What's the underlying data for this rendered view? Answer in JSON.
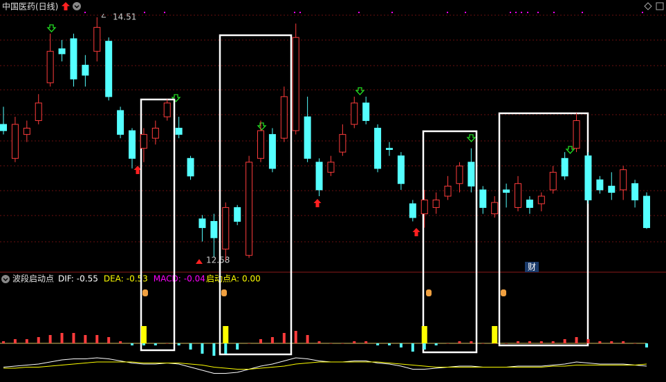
{
  "chart_data": {
    "type": "candlestick",
    "title": "中国医药(日线)",
    "open": [
      13.66,
      13.39,
      13.58,
      13.69,
      13.99,
      14.26,
      14.34,
      14.13,
      14.24,
      14.32,
      13.77,
      13.61,
      13.47,
      13.55,
      13.72,
      13.63,
      13.39,
      12.91,
      12.89,
      12.67,
      13.0,
      12.62,
      13.39,
      13.58,
      13.55,
      13.61,
      13.72,
      13.36,
      13.28,
      13.44,
      13.66,
      13.83,
      13.63,
      13.47,
      13.41,
      13.03,
      12.95,
      13.0,
      13.09,
      13.19,
      13.36,
      13.14,
      12.95,
      13.14,
      13.0,
      13.06,
      13.03,
      13.14,
      13.39,
      13.47,
      13.41,
      13.22,
      13.17,
      13.14,
      13.19,
      13.09
    ],
    "close": [
      13.61,
      13.66,
      13.63,
      13.83,
      14.24,
      14.22,
      14.02,
      14.05,
      14.43,
      13.88,
      13.58,
      13.39,
      13.58,
      13.63,
      13.83,
      13.58,
      13.25,
      12.84,
      12.76,
      13.0,
      12.89,
      13.36,
      13.61,
      13.31,
      13.88,
      14.35,
      13.39,
      13.14,
      13.36,
      13.58,
      13.83,
      13.69,
      13.31,
      13.46,
      13.19,
      12.92,
      13.06,
      13.06,
      13.17,
      13.33,
      13.17,
      13.0,
      13.04,
      13.12,
      13.19,
      13.0,
      13.09,
      13.28,
      13.25,
      13.69,
      13.06,
      13.14,
      13.12,
      13.3,
      13.06,
      12.84
    ],
    "high": [
      13.8,
      13.72,
      13.69,
      13.9,
      14.38,
      14.33,
      14.38,
      14.21,
      14.51,
      14.35,
      13.8,
      13.63,
      13.63,
      13.69,
      13.86,
      13.72,
      13.41,
      12.94,
      12.95,
      13.04,
      13.02,
      13.41,
      13.69,
      13.63,
      13.96,
      14.46,
      13.88,
      13.39,
      13.41,
      13.66,
      13.88,
      13.88,
      13.66,
      13.52,
      13.44,
      13.06,
      13.14,
      13.12,
      13.25,
      13.36,
      13.47,
      13.17,
      13.09,
      13.19,
      13.25,
      13.09,
      13.12,
      13.33,
      13.44,
      13.75,
      13.44,
      13.25,
      13.28,
      13.33,
      13.22,
      13.12
    ],
    "low": [
      13.58,
      13.36,
      13.52,
      13.66,
      13.96,
      14.16,
      13.96,
      13.96,
      14.16,
      13.85,
      13.55,
      13.31,
      13.36,
      13.5,
      13.69,
      13.55,
      13.22,
      12.73,
      12.61,
      12.58,
      12.86,
      12.6,
      13.36,
      13.28,
      13.52,
      13.58,
      13.36,
      13.09,
      13.25,
      13.41,
      13.63,
      13.66,
      13.28,
      13.41,
      13.14,
      12.89,
      12.84,
      12.95,
      13.06,
      13.12,
      13.12,
      12.95,
      12.92,
      13.0,
      12.97,
      12.95,
      12.97,
      13.11,
      13.22,
      13.44,
      13.03,
      13.11,
      13.06,
      13.06,
      13.0,
      12.83
    ],
    "ylim": [
      12.5,
      14.6
    ],
    "up_color": "#ff3c3c",
    "down_color": "#54ffff",
    "high_label": 14.51,
    "low_label": 12.58,
    "indicator": {
      "title": "波段启动点",
      "legend": [
        {
          "label": "DIF:",
          "value": -0.55,
          "color": "#ffffff"
        },
        {
          "label": "DEA:",
          "value": -0.53,
          "color": "#ffff00"
        },
        {
          "label": "MACD:",
          "value": -0.04,
          "color": "#ff00ff"
        },
        {
          "label": "启动点A:",
          "value": 0,
          "value_label": "0.00",
          "color": "#ffff00"
        }
      ],
      "dif": [
        -0.56,
        -0.55,
        -0.54,
        -0.53,
        -0.51,
        -0.49,
        -0.48,
        -0.48,
        -0.47,
        -0.48,
        -0.5,
        -0.52,
        -0.53,
        -0.53,
        -0.52,
        -0.53,
        -0.56,
        -0.59,
        -0.62,
        -0.62,
        -0.61,
        -0.58,
        -0.55,
        -0.53,
        -0.5,
        -0.47,
        -0.48,
        -0.5,
        -0.51,
        -0.51,
        -0.5,
        -0.5,
        -0.52,
        -0.53,
        -0.55,
        -0.58,
        -0.58,
        -0.57,
        -0.56,
        -0.55,
        -0.55,
        -0.56,
        -0.56,
        -0.56,
        -0.55,
        -0.55,
        -0.55,
        -0.54,
        -0.53,
        -0.51,
        -0.52,
        -0.53,
        -0.53,
        -0.53,
        -0.54,
        -0.55
      ],
      "dea": [
        -0.57,
        -0.57,
        -0.56,
        -0.56,
        -0.55,
        -0.54,
        -0.53,
        -0.52,
        -0.51,
        -0.51,
        -0.51,
        -0.51,
        -0.52,
        -0.52,
        -0.52,
        -0.52,
        -0.53,
        -0.54,
        -0.56,
        -0.57,
        -0.58,
        -0.58,
        -0.57,
        -0.56,
        -0.55,
        -0.53,
        -0.52,
        -0.51,
        -0.51,
        -0.51,
        -0.51,
        -0.51,
        -0.51,
        -0.52,
        -0.53,
        -0.54,
        -0.55,
        -0.56,
        -0.56,
        -0.56,
        -0.56,
        -0.56,
        -0.56,
        -0.56,
        -0.56,
        -0.56,
        -0.56,
        -0.55,
        -0.55,
        -0.54,
        -0.54,
        -0.54,
        -0.54,
        -0.54,
        -0.54,
        -0.53
      ],
      "macd": [
        0.02,
        0.04,
        0.04,
        0.06,
        0.08,
        0.1,
        0.1,
        0.08,
        0.08,
        0.06,
        0.02,
        -0.02,
        -0.02,
        -0.02,
        0,
        -0.02,
        -0.06,
        -0.1,
        -0.12,
        -0.1,
        -0.06,
        0,
        0.04,
        0.06,
        0.1,
        0.12,
        0.08,
        0.02,
        0,
        0,
        0.02,
        0.02,
        -0.02,
        -0.02,
        -0.04,
        -0.08,
        -0.06,
        -0.02,
        0,
        0.02,
        0.02,
        0,
        0,
        0,
        0.02,
        0.02,
        0.02,
        0.02,
        0.04,
        0.06,
        0.04,
        0.02,
        0.02,
        0.02,
        0,
        -0.04
      ],
      "start_a": [
        null,
        null,
        null,
        null,
        null,
        null,
        null,
        null,
        null,
        null,
        null,
        null,
        1,
        null,
        null,
        null,
        null,
        null,
        null,
        1,
        null,
        null,
        null,
        null,
        null,
        null,
        null,
        null,
        null,
        null,
        null,
        null,
        null,
        null,
        null,
        null,
        1,
        null,
        null,
        null,
        null,
        null,
        1,
        null,
        null,
        null,
        null,
        null,
        null,
        null,
        null,
        null,
        null,
        null,
        null,
        null
      ]
    },
    "badge": "财"
  }
}
